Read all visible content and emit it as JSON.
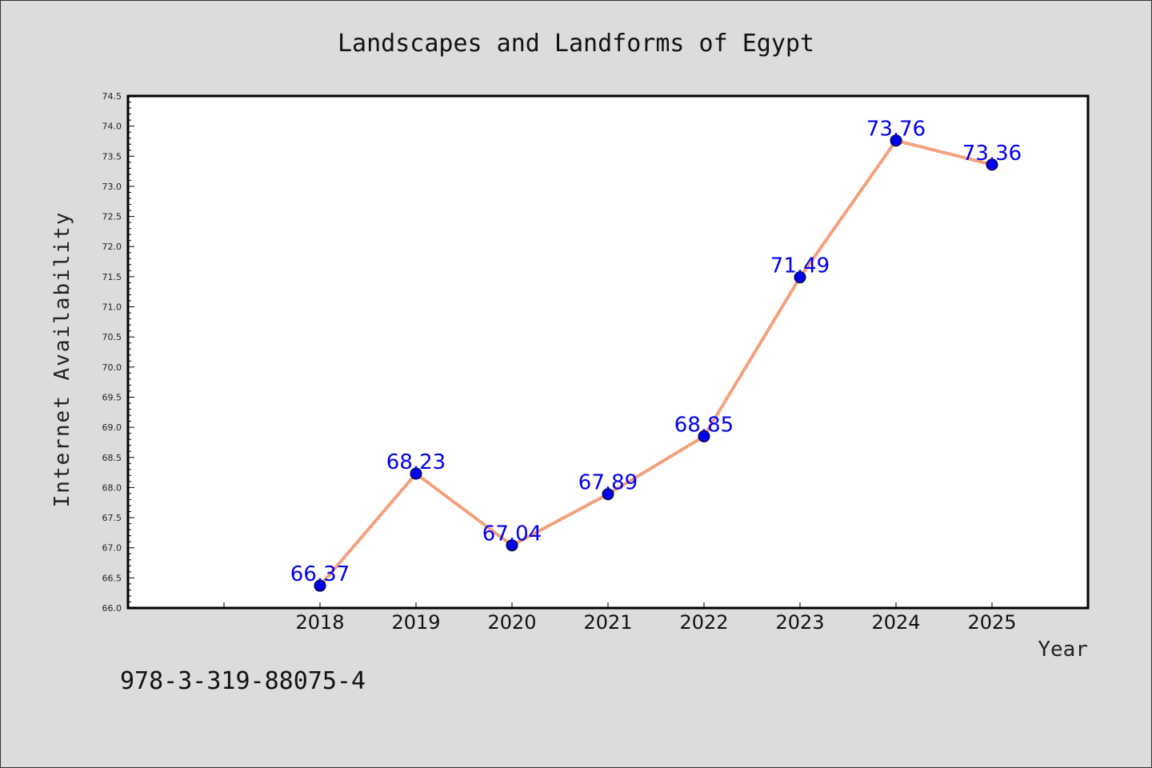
{
  "chart_data": {
    "type": "line",
    "title": "Landscapes and Landforms of Egypt",
    "xlabel": "Year",
    "ylabel": "Internet Availability",
    "x": [
      "2018",
      "2019",
      "2020",
      "2021",
      "2022",
      "2023",
      "2024",
      "2025"
    ],
    "x_numeric": [
      2018,
      2019,
      2020,
      2021,
      2022,
      2023,
      2024,
      2025
    ],
    "xlim": [
      2016,
      2026
    ],
    "series": [
      {
        "values": [
          66.37,
          68.23,
          67.04,
          67.89,
          68.85,
          71.49,
          73.76,
          73.36
        ],
        "labels": [
          "66.37",
          "68.23",
          "67.04",
          "67.89",
          "68.85",
          "71.49",
          "73.76",
          "73.36"
        ],
        "line_color": "#f4a07c",
        "marker_color": "#0000ee"
      }
    ],
    "ylim": [
      66.0,
      74.5
    ],
    "yticks": [
      "66.0",
      "66.5",
      "67.0",
      "67.5",
      "68.0",
      "68.5",
      "69.0",
      "69.5",
      "70.0",
      "70.5",
      "71.0",
      "71.5",
      "72.0",
      "72.5",
      "73.0",
      "73.5",
      "74.0",
      "74.5"
    ],
    "label_color": "#0000ee",
    "background": "#dcdcdc",
    "plot_background": "#ffffff",
    "grid": false,
    "legend": "none"
  },
  "footer": {
    "code": "978-3-319-88075-4"
  }
}
